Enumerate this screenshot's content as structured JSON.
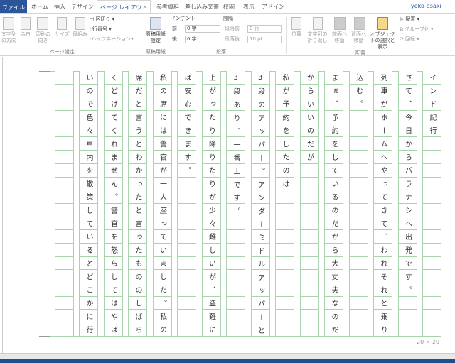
{
  "tabs": [
    "ファイル",
    "ホーム",
    "挿入",
    "デザイン",
    "ページ レイアウト",
    "参考資料",
    "差し込み文書",
    "校閲",
    "表示",
    "アドイン"
  ],
  "active_tab": "ページ レイアウト",
  "user": "yoko-asaki",
  "ribbon": {
    "page_setup": {
      "text_dir": "文字列の方向",
      "margins": "余白",
      "orientation": "印刷の向き",
      "size": "サイズ",
      "columns": "段組み",
      "breaks": "区切り",
      "line_numbers": "行番号",
      "hyphenation": "ハイフネーション",
      "label": "ページ設定"
    },
    "genko": {
      "button": "原稿用紙設定",
      "label": "原稿用紙"
    },
    "paragraph": {
      "indent": "インデント",
      "spacing": "間隔",
      "before": "前",
      "after": "後",
      "indent_before": "0 字",
      "indent_after": "0 字",
      "space_before_label": "段落前",
      "space_before": "0 行",
      "space_after_label": "段落後",
      "space_after": "10 pt",
      "label": "段落"
    },
    "arrange": {
      "position": "位置",
      "wrap": "文字列の折り返し",
      "forward": "前面へ移動",
      "backward": "背面へ移動",
      "selection": "オブジェクトの選択と表示",
      "align": "配置",
      "group": "グループ化",
      "rotate": "回転",
      "label": "配置"
    }
  },
  "document": {
    "columns": [
      "インド記行",
      "さて、今日からバラナシへ出発です。",
      "列車がホームへやってきて、われそれと乗り",
      "込む。",
      "まぁ、予約をしているのだから大丈夫なのだ",
      "からいいのだが",
      "私が予約をしたのは",
      "3段のアッパー。アンダーミドルアッパーと",
      "3段あり、一番上です。",
      "上がったり降りたりが少々難しいが、盗難に",
      "は安心できます。",
      "私の席には警官が一人座っていました。私の",
      "席だと言うとわかったと言ったもののしばら",
      "くどけてくれません。警官を怒らしてはやば",
      "いので色々車内を散策しているとどこかに行",
      ""
    ],
    "grid_size": "20 × 20"
  },
  "colors": {
    "accent": "#2b579a",
    "grid": "#a9d3ad"
  }
}
